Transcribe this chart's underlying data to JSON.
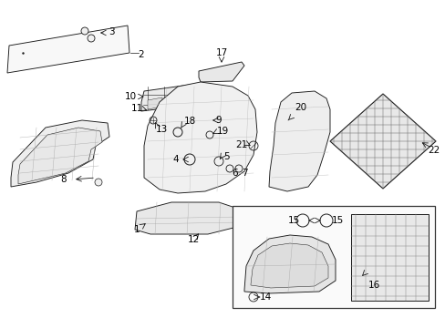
{
  "bg_color": "#ffffff",
  "line_color": "#1a1a1a",
  "label_color": "#000000",
  "figsize": [
    4.89,
    3.6
  ],
  "dpi": 100,
  "font_size": 7.5,
  "lw": 0.65
}
